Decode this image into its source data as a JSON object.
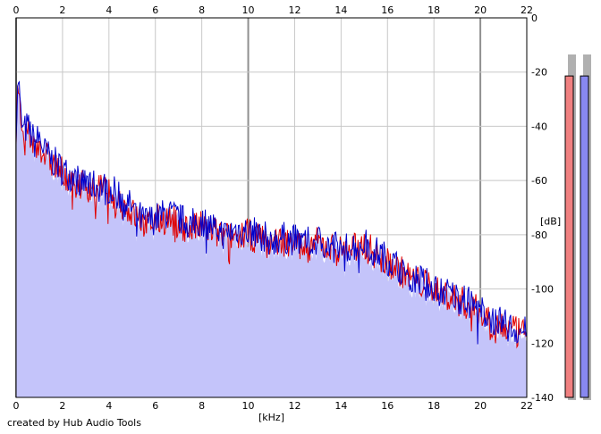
{
  "credit": "created by Hub Audio Tools",
  "chart_data": {
    "type": "area",
    "xlabel": "[kHz]",
    "ylabel": "[dB]",
    "xlim": [
      0,
      22
    ],
    "ylim": [
      -140,
      0
    ],
    "x_ticks": [
      "0",
      "2",
      "4",
      "6",
      "8",
      "10",
      "12",
      "14",
      "16",
      "18",
      "20",
      "22"
    ],
    "y_ticks": [
      "0",
      "-20",
      "-40",
      "-60",
      "-80",
      "-100",
      "-120",
      "-140"
    ],
    "grid": true,
    "series": [
      {
        "color": "#e00000",
        "x": [
          0,
          0.1,
          0.2,
          0.3,
          0.5,
          0.8,
          1,
          1.2,
          1.5,
          2,
          2.5,
          3,
          3.5,
          4,
          4.5,
          5,
          5.5,
          6,
          6.5,
          7,
          7.5,
          8,
          8.5,
          9,
          9.5,
          10,
          10.5,
          11,
          11.5,
          12,
          12.5,
          13,
          13.5,
          14,
          14.5,
          15,
          15.5,
          16,
          16.5,
          17,
          17.5,
          18,
          18.5,
          19,
          19.5,
          20,
          20.5,
          21,
          21.5,
          22
        ],
        "values": [
          -42,
          -25,
          -38,
          -45,
          -42,
          -48,
          -46,
          -50,
          -53,
          -57,
          -60,
          -62,
          -63,
          -64,
          -68,
          -72,
          -76,
          -75,
          -74,
          -76,
          -78,
          -77,
          -79,
          -81,
          -80,
          -80,
          -81,
          -83,
          -82,
          -83,
          -84,
          -83,
          -85,
          -86,
          -85,
          -84,
          -87,
          -90,
          -93,
          -96,
          -98,
          -100,
          -102,
          -104,
          -106,
          -109,
          -112,
          -114,
          -116,
          -117
        ]
      },
      {
        "color": "#0000cc",
        "x": [
          0,
          0.1,
          0.2,
          0.3,
          0.5,
          0.8,
          1,
          1.2,
          1.5,
          2,
          2.5,
          3,
          3.5,
          4,
          4.5,
          5,
          5.5,
          6,
          6.5,
          7,
          7.5,
          8,
          8.5,
          9,
          9.5,
          10,
          10.5,
          11,
          11.5,
          12,
          12.5,
          13,
          13.5,
          14,
          14.5,
          15,
          15.5,
          16,
          16.5,
          17,
          17.5,
          18,
          18.5,
          19,
          19.5,
          20,
          20.5,
          21,
          21.5,
          22
        ],
        "values": [
          -40,
          -22,
          -36,
          -42,
          -40,
          -46,
          -44,
          -49,
          -52,
          -56,
          -59,
          -61,
          -62,
          -63,
          -66,
          -70,
          -75,
          -74,
          -72,
          -74,
          -76,
          -75,
          -77,
          -80,
          -78,
          -79,
          -80,
          -82,
          -81,
          -82,
          -83,
          -82,
          -84,
          -85,
          -84,
          -83,
          -86,
          -89,
          -92,
          -95,
          -97,
          -99,
          -101,
          -103,
          -105,
          -108,
          -111,
          -113,
          -115,
          -116
        ]
      }
    ],
    "fill_color": "#c4c4fa",
    "meters": [
      {
        "color": "#f08080",
        "level": 0.93
      },
      {
        "color": "#8888f0",
        "level": 0.93
      }
    ]
  }
}
